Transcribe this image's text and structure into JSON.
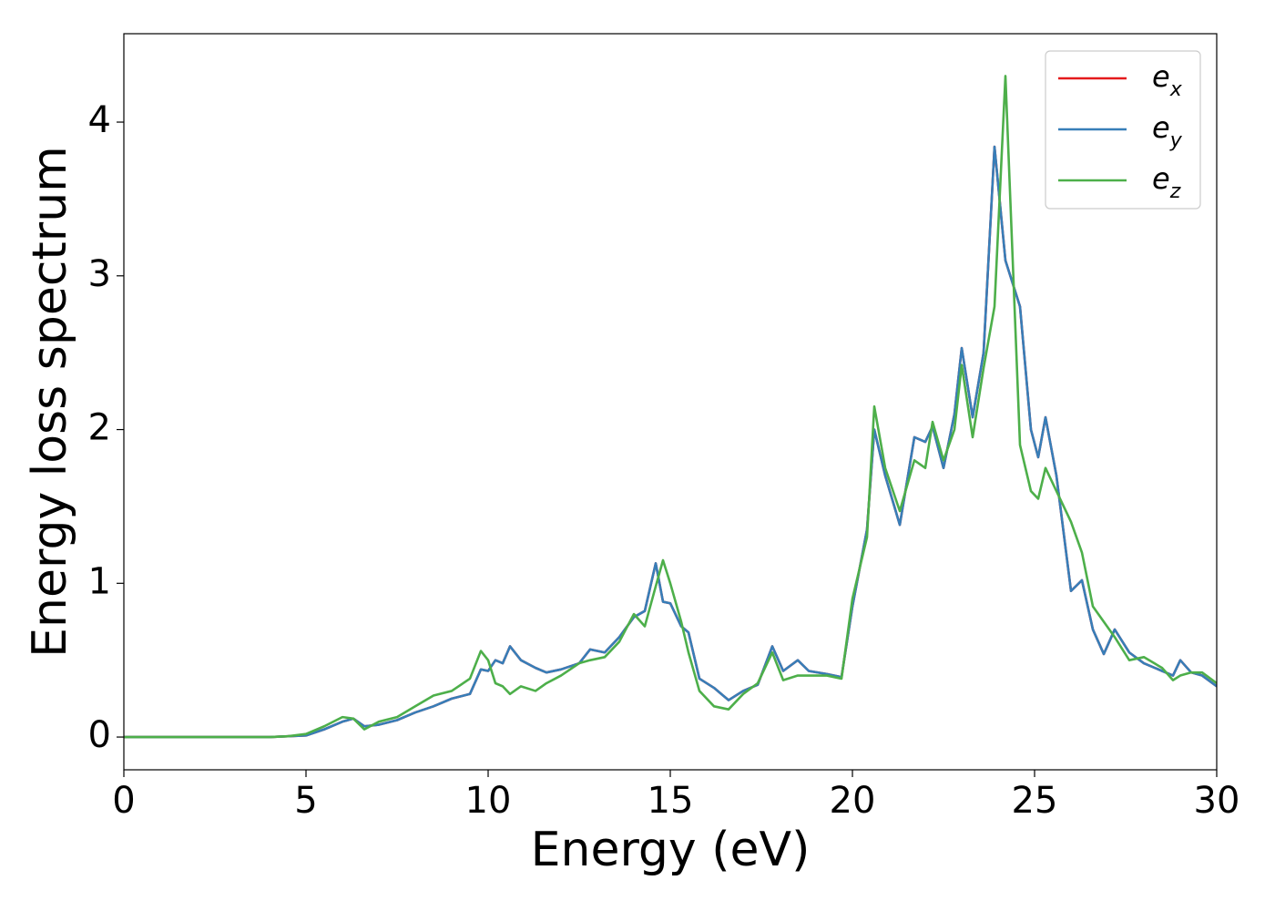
{
  "chart_data": {
    "type": "line",
    "x_label": "Energy (eV)",
    "y_label": "Energy loss spectrum",
    "x": [
      0,
      1,
      2,
      3,
      4,
      4.5,
      5,
      5.5,
      6,
      6.3,
      6.6,
      7,
      7.5,
      8,
      8.5,
      9,
      9.5,
      9.8,
      10,
      10.2,
      10.4,
      10.6,
      10.9,
      11.3,
      11.6,
      12,
      12.5,
      12.8,
      13.2,
      13.6,
      14,
      14.3,
      14.6,
      14.8,
      15,
      15.3,
      15.5,
      15.8,
      16.2,
      16.6,
      17,
      17.4,
      17.8,
      18.1,
      18.5,
      18.8,
      19.3,
      19.7,
      20,
      20.4,
      20.6,
      20.9,
      21.3,
      21.7,
      22,
      22.2,
      22.5,
      22.8,
      23,
      23.3,
      23.6,
      23.9,
      24.2,
      24.6,
      24.9,
      25.1,
      25.3,
      25.6,
      26,
      26.3,
      26.6,
      26.9,
      27.2,
      27.6,
      28,
      28.5,
      28.8,
      29,
      29.3,
      29.6,
      30
    ],
    "series": [
      {
        "name": "e_x",
        "color": "#e41a1c",
        "values": [
          0,
          0,
          0,
          0,
          0,
          0.005,
          0.01,
          0.05,
          0.1,
          0.12,
          0.07,
          0.08,
          0.11,
          0.16,
          0.2,
          0.25,
          0.28,
          0.44,
          0.43,
          0.5,
          0.48,
          0.59,
          0.5,
          0.45,
          0.42,
          0.44,
          0.48,
          0.57,
          0.55,
          0.65,
          0.78,
          0.82,
          1.13,
          0.88,
          0.87,
          0.72,
          0.68,
          0.38,
          0.32,
          0.24,
          0.3,
          0.34,
          0.59,
          0.43,
          0.5,
          0.43,
          0.41,
          0.39,
          0.85,
          1.35,
          2.0,
          1.7,
          1.38,
          1.95,
          1.92,
          2.02,
          1.75,
          2.1,
          2.53,
          2.08,
          2.5,
          3.84,
          3.1,
          2.8,
          2.0,
          1.82,
          2.08,
          1.7,
          0.95,
          1.02,
          0.7,
          0.54,
          0.7,
          0.55,
          0.48,
          0.43,
          0.4,
          0.5,
          0.42,
          0.4,
          0.33
        ]
      },
      {
        "name": "e_y",
        "color": "#377eb8",
        "values": [
          0,
          0,
          0,
          0,
          0,
          0.005,
          0.01,
          0.05,
          0.1,
          0.12,
          0.07,
          0.08,
          0.11,
          0.16,
          0.2,
          0.25,
          0.28,
          0.44,
          0.43,
          0.5,
          0.48,
          0.59,
          0.5,
          0.45,
          0.42,
          0.44,
          0.48,
          0.57,
          0.55,
          0.65,
          0.78,
          0.82,
          1.13,
          0.88,
          0.87,
          0.72,
          0.68,
          0.38,
          0.32,
          0.24,
          0.3,
          0.34,
          0.59,
          0.43,
          0.5,
          0.43,
          0.41,
          0.39,
          0.85,
          1.35,
          2.0,
          1.7,
          1.38,
          1.95,
          1.92,
          2.02,
          1.75,
          2.1,
          2.53,
          2.08,
          2.5,
          3.84,
          3.1,
          2.8,
          2.0,
          1.82,
          2.08,
          1.7,
          0.95,
          1.02,
          0.7,
          0.54,
          0.7,
          0.55,
          0.48,
          0.43,
          0.4,
          0.5,
          0.42,
          0.4,
          0.33
        ]
      },
      {
        "name": "e_z",
        "color": "#4daf4a",
        "values": [
          0,
          0,
          0,
          0,
          0,
          0.005,
          0.02,
          0.07,
          0.13,
          0.12,
          0.05,
          0.1,
          0.13,
          0.2,
          0.27,
          0.3,
          0.38,
          0.56,
          0.5,
          0.35,
          0.33,
          0.28,
          0.33,
          0.3,
          0.35,
          0.4,
          0.48,
          0.5,
          0.52,
          0.62,
          0.8,
          0.72,
          0.98,
          1.15,
          1.0,
          0.75,
          0.55,
          0.3,
          0.2,
          0.18,
          0.28,
          0.35,
          0.55,
          0.37,
          0.4,
          0.4,
          0.4,
          0.38,
          0.9,
          1.3,
          2.15,
          1.75,
          1.47,
          1.8,
          1.75,
          2.05,
          1.8,
          2.0,
          2.42,
          1.95,
          2.4,
          2.8,
          4.3,
          1.9,
          1.6,
          1.55,
          1.75,
          1.6,
          1.4,
          1.2,
          0.85,
          0.75,
          0.65,
          0.5,
          0.52,
          0.45,
          0.37,
          0.4,
          0.42,
          0.42,
          0.35
        ]
      }
    ],
    "xlim": [
      0,
      30
    ],
    "ylim": [
      -0.213,
      4.575
    ],
    "xticks": [
      0,
      5,
      10,
      15,
      20,
      25,
      30
    ],
    "yticks": [
      0,
      1,
      2,
      3,
      4
    ],
    "grid": false,
    "legend": "upper right"
  }
}
